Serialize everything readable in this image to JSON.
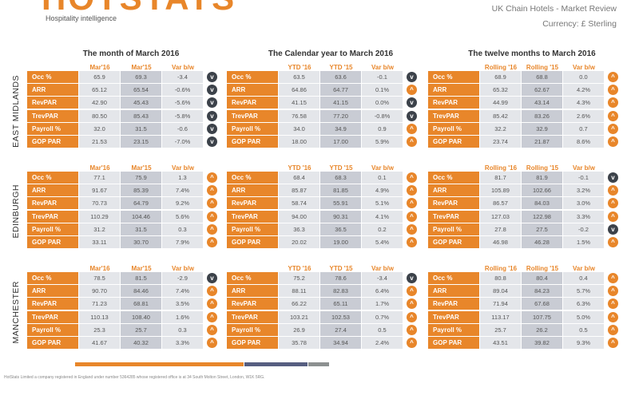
{
  "brand": {
    "logo": "HOTSTATS",
    "tagline": "Hospitality intelligence",
    "color": "#e8862a"
  },
  "header": {
    "title": "UK Chain Hotels - Market Review",
    "currency": "Currency: £ Sterling"
  },
  "periods": [
    {
      "title": "The month of March 2016",
      "cols": [
        "Mar'16",
        "Mar'15",
        "Var b/w"
      ]
    },
    {
      "title": "The Calendar year to March 2016",
      "cols": [
        "YTD '16",
        "YTD '15",
        "Var b/w"
      ]
    },
    {
      "title": "The twelve months to March 2016",
      "cols": [
        "Rolling '16",
        "Rolling '15",
        "Var b/w"
      ]
    }
  ],
  "metrics": [
    "Occ %",
    "ARR",
    "RevPAR",
    "TrevPAR",
    "Payroll %",
    "GOP PAR"
  ],
  "regions": [
    {
      "name": "EAST MIDLANDS",
      "tables": [
        [
          [
            "65.9",
            "69.3",
            "-3.4",
            "down"
          ],
          [
            "65.12",
            "65.54",
            "-0.6%",
            "down"
          ],
          [
            "42.90",
            "45.43",
            "-5.6%",
            "down"
          ],
          [
            "80.50",
            "85.43",
            "-5.8%",
            "down"
          ],
          [
            "32.0",
            "31.5",
            "-0.6",
            "down"
          ],
          [
            "21.53",
            "23.15",
            "-7.0%",
            "down"
          ]
        ],
        [
          [
            "63.5",
            "63.6",
            "-0.1",
            "down"
          ],
          [
            "64.86",
            "64.77",
            "0.1%",
            "up"
          ],
          [
            "41.15",
            "41.15",
            "0.0%",
            "down"
          ],
          [
            "76.58",
            "77.20",
            "-0.8%",
            "down"
          ],
          [
            "34.0",
            "34.9",
            "0.9",
            "up"
          ],
          [
            "18.00",
            "17.00",
            "5.9%",
            "up"
          ]
        ],
        [
          [
            "68.9",
            "68.8",
            "0.0",
            "up"
          ],
          [
            "65.32",
            "62.67",
            "4.2%",
            "up"
          ],
          [
            "44.99",
            "43.14",
            "4.3%",
            "up"
          ],
          [
            "85.42",
            "83.26",
            "2.6%",
            "up"
          ],
          [
            "32.2",
            "32.9",
            "0.7",
            "up"
          ],
          [
            "23.74",
            "21.87",
            "8.6%",
            "up"
          ]
        ]
      ]
    },
    {
      "name": "EDINBURGH",
      "tables": [
        [
          [
            "77.1",
            "75.9",
            "1.3",
            "up"
          ],
          [
            "91.67",
            "85.39",
            "7.4%",
            "up"
          ],
          [
            "70.73",
            "64.79",
            "9.2%",
            "up"
          ],
          [
            "110.29",
            "104.46",
            "5.6%",
            "up"
          ],
          [
            "31.2",
            "31.5",
            "0.3",
            "up"
          ],
          [
            "33.11",
            "30.70",
            "7.9%",
            "up"
          ]
        ],
        [
          [
            "68.4",
            "68.3",
            "0.1",
            "up"
          ],
          [
            "85.87",
            "81.85",
            "4.9%",
            "up"
          ],
          [
            "58.74",
            "55.91",
            "5.1%",
            "up"
          ],
          [
            "94.00",
            "90.31",
            "4.1%",
            "up"
          ],
          [
            "36.3",
            "36.5",
            "0.2",
            "up"
          ],
          [
            "20.02",
            "19.00",
            "5.4%",
            "up"
          ]
        ],
        [
          [
            "81.7",
            "81.9",
            "-0.1",
            "down"
          ],
          [
            "105.89",
            "102.66",
            "3.2%",
            "up"
          ],
          [
            "86.57",
            "84.03",
            "3.0%",
            "up"
          ],
          [
            "127.03",
            "122.98",
            "3.3%",
            "up"
          ],
          [
            "27.8",
            "27.5",
            "-0.2",
            "down"
          ],
          [
            "46.98",
            "46.28",
            "1.5%",
            "up"
          ]
        ]
      ]
    },
    {
      "name": "MANCHESTER",
      "tables": [
        [
          [
            "78.5",
            "81.5",
            "-2.9",
            "down"
          ],
          [
            "90.70",
            "84.46",
            "7.4%",
            "up"
          ],
          [
            "71.23",
            "68.81",
            "3.5%",
            "up"
          ],
          [
            "110.13",
            "108.40",
            "1.6%",
            "up"
          ],
          [
            "25.3",
            "25.7",
            "0.3",
            "up"
          ],
          [
            "41.67",
            "40.32",
            "3.3%",
            "up"
          ]
        ],
        [
          [
            "75.2",
            "78.6",
            "-3.4",
            "down"
          ],
          [
            "88.11",
            "82.83",
            "6.4%",
            "up"
          ],
          [
            "66.22",
            "65.11",
            "1.7%",
            "up"
          ],
          [
            "103.21",
            "102.53",
            "0.7%",
            "up"
          ],
          [
            "26.9",
            "27.4",
            "0.5",
            "up"
          ],
          [
            "35.78",
            "34.94",
            "2.4%",
            "up"
          ]
        ],
        [
          [
            "80.8",
            "80.4",
            "0.4",
            "up"
          ],
          [
            "89.04",
            "84.23",
            "5.7%",
            "up"
          ],
          [
            "71.94",
            "67.68",
            "6.3%",
            "up"
          ],
          [
            "113.17",
            "107.75",
            "5.0%",
            "up"
          ],
          [
            "25.7",
            "26.2",
            "0.5",
            "up"
          ],
          [
            "43.51",
            "39.82",
            "9.3%",
            "up"
          ]
        ]
      ]
    }
  ],
  "footer": "HotStats Limited a company registered in England under number 5364285 whose registered office is at 34 South Molton Street, London, W1K 5RG."
}
